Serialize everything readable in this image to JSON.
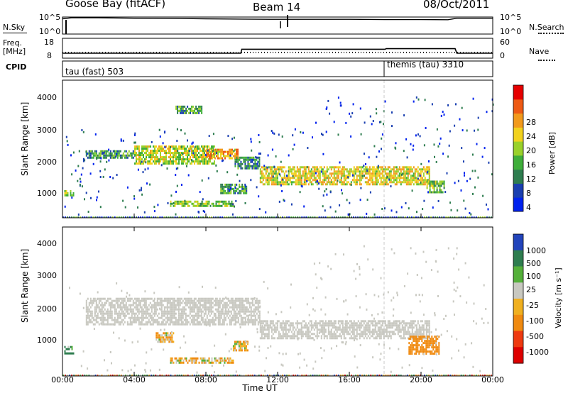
{
  "header": {
    "station": "Goose Bay (fitACF)",
    "beam": "Beam 14",
    "date": "08/Oct/2011"
  },
  "top_panel": {
    "left_label": "N.Sky",
    "right_label": "N.Search",
    "left_ticks": [
      "10^5",
      "10^0"
    ],
    "right_ticks": [
      "10^5",
      "10^0"
    ]
  },
  "freq_panel": {
    "left_label_1": "Freq.",
    "left_label_2": "[MHz]",
    "right_label": "Nave",
    "left_ticks": [
      "18",
      "8"
    ],
    "right_ticks": [
      "60",
      "0"
    ]
  },
  "cpid": {
    "label": "CPID",
    "mode_1": "tau (fast) 503",
    "mode_2": "themis (tau) 3310"
  },
  "power_panel": {
    "ylabel": "Slant Range [km]",
    "y_ticks": [
      "4000",
      "3000",
      "2000",
      "1000"
    ],
    "colorbar_label": "Power [dB]",
    "colorbar_ticks": [
      "28",
      "24",
      "20",
      "16",
      "12",
      "8",
      "4"
    ]
  },
  "velocity_panel": {
    "ylabel": "Slant Range [km]",
    "y_ticks": [
      "4000",
      "3000",
      "2000",
      "1000"
    ],
    "colorbar_label": "Velocity [m s⁻¹]",
    "colorbar_ticks": [
      "1000",
      "500",
      "100",
      "25",
      "-25",
      "-100",
      "-500",
      "-1000"
    ]
  },
  "x_axis": {
    "label": "Time UT",
    "ticks": [
      "00:00",
      "04:00",
      "08:00",
      "12:00",
      "16:00",
      "20:00",
      "00:00"
    ]
  },
  "colors": {
    "power_scale": [
      "#0022ee",
      "#1a3fb0",
      "#2e7d4f",
      "#3fae3a",
      "#9ad12a",
      "#f2d21e",
      "#f29a1c",
      "#ee5a14",
      "#e60000"
    ],
    "velocity_scale": [
      "#2244bb",
      "#2e7d4f",
      "#55b03a",
      "#c8c8c0",
      "#f0b020",
      "#f08a10",
      "#ee3a10",
      "#dd0000"
    ],
    "ground_scatter": "#c8c8c0"
  },
  "chart_data": [
    {
      "type": "line",
      "title": "N.Sky / N.Search",
      "x_range_hours": [
        0,
        24
      ],
      "y_scale": "log",
      "ylim": [
        1,
        100000
      ],
      "series": [
        {
          "name": "N.Sky",
          "x": [
            0,
            0.5,
            2,
            4,
            6,
            8,
            10,
            12,
            14,
            16,
            18,
            20,
            21.5,
            22,
            24
          ],
          "values": [
            30000,
            60000,
            60000,
            45000,
            40000,
            30000,
            25000,
            22000,
            22000,
            22000,
            18000,
            18000,
            16000,
            45000,
            45000
          ]
        }
      ]
    },
    {
      "type": "line",
      "title": "Freq. / Nave",
      "x_range_hours": [
        0,
        24
      ],
      "ylim": [
        8,
        18
      ],
      "series": [
        {
          "name": "Freq.",
          "x": [
            0,
            9.95,
            10,
            18,
            18.05,
            21.9,
            22,
            24
          ],
          "values": [
            10.5,
            10.5,
            12.5,
            12.5,
            12.8,
            12.8,
            10.5,
            10.5
          ]
        },
        {
          "name": "Nave",
          "x": [
            0,
            24
          ],
          "values": [
            8,
            8
          ]
        }
      ]
    },
    {
      "type": "heatmap",
      "title": "Power [dB]",
      "xlabel": "Time UT",
      "ylabel": "Slant Range [km]",
      "x_range_hours": [
        0,
        24
      ],
      "ylim": [
        180,
        4500
      ],
      "colorbar": {
        "label": "Power [dB]",
        "range": [
          0,
          30
        ],
        "ticks": [
          4,
          8,
          12,
          16,
          20,
          24,
          28
        ]
      },
      "echo_regions": [
        {
          "t": [
            0.1,
            0.6
          ],
          "r": [
            850,
            1050
          ],
          "power_db": 14
        },
        {
          "t": [
            1.3,
            4.0
          ],
          "r": [
            2050,
            2300
          ],
          "power_db": 10
        },
        {
          "t": [
            4.0,
            8.5
          ],
          "r": [
            1900,
            2450
          ],
          "power_db": 16
        },
        {
          "t": [
            8.0,
            9.8
          ],
          "r": [
            2050,
            2350
          ],
          "power_db": 22
        },
        {
          "t": [
            9.6,
            11.0
          ],
          "r": [
            1700,
            2100
          ],
          "power_db": 8
        },
        {
          "t": [
            11.0,
            20.5
          ],
          "r": [
            1250,
            1800
          ],
          "power_db": 18
        },
        {
          "t": [
            20.3,
            21.3
          ],
          "r": [
            950,
            1350
          ],
          "power_db": 12
        },
        {
          "t": [
            6.0,
            9.5
          ],
          "r": [
            550,
            720
          ],
          "power_db": 14
        },
        {
          "t": [
            8.8,
            10.3
          ],
          "r": [
            950,
            1250
          ],
          "power_db": 10
        },
        {
          "t": [
            6.3,
            7.8
          ],
          "r": [
            3450,
            3700
          ],
          "power_db": 10
        }
      ]
    },
    {
      "type": "heatmap",
      "title": "Velocity [m s⁻¹]",
      "xlabel": "Time UT",
      "ylabel": "Slant Range [km]",
      "x_range_hours": [
        0,
        24
      ],
      "ylim": [
        180,
        4500
      ],
      "colorbar": {
        "label": "Velocity [m s⁻¹]",
        "ticks": [
          1000,
          500,
          100,
          25,
          -25,
          -100,
          -500,
          -1000
        ]
      },
      "echo_regions": [
        {
          "t": [
            0.1,
            0.6
          ],
          "r": [
            850,
            1050
          ],
          "velocity": 200
        },
        {
          "t": [
            1.3,
            11.0
          ],
          "r": [
            1700,
            2450
          ],
          "velocity": 0,
          "ground_scatter": true
        },
        {
          "t": [
            11.0,
            20.5
          ],
          "r": [
            1250,
            1800
          ],
          "velocity": 0,
          "ground_scatter": true
        },
        {
          "t": [
            19.3,
            21.0
          ],
          "r": [
            850,
            1350
          ],
          "velocity": -300
        },
        {
          "t": [
            6.0,
            9.5
          ],
          "r": [
            550,
            720
          ],
          "velocity": -80
        },
        {
          "t": [
            5.2,
            6.2
          ],
          "r": [
            1150,
            1450
          ],
          "velocity": -100
        },
        {
          "t": [
            9.5,
            10.3
          ],
          "r": [
            950,
            1200
          ],
          "velocity": -60
        }
      ]
    }
  ]
}
